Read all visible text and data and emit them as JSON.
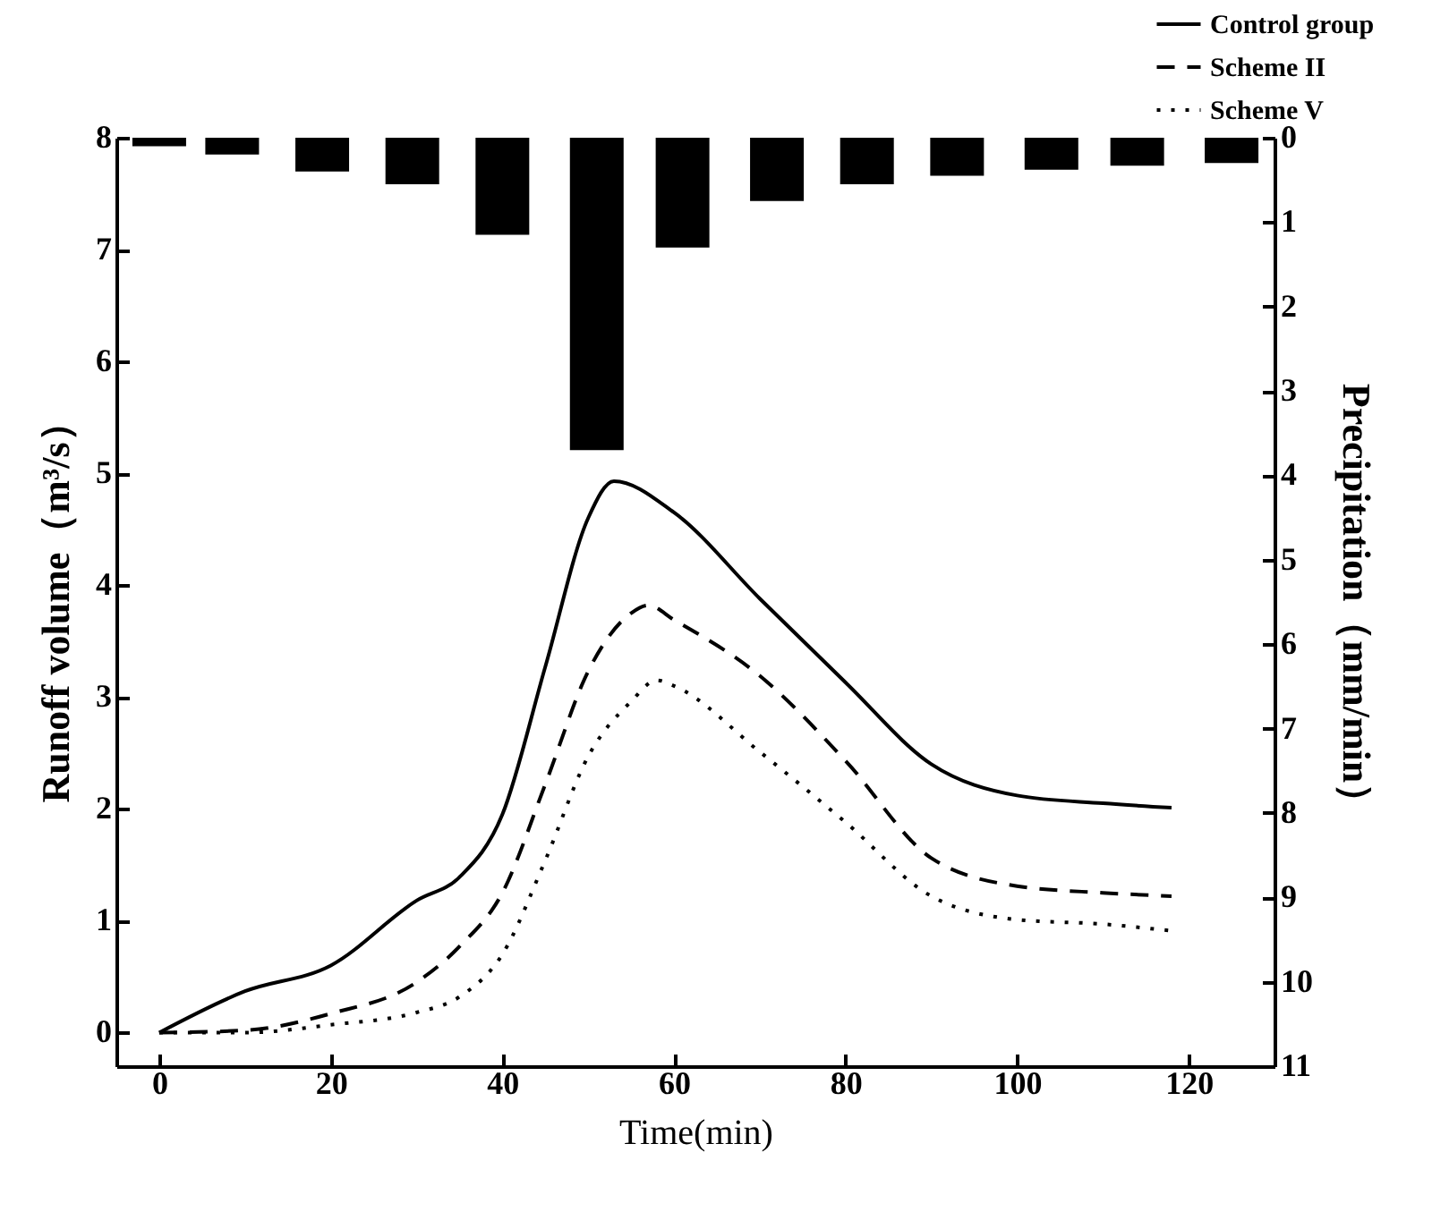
{
  "chart_data": {
    "type": "line",
    "xlabel": "Time(min)",
    "ylabel": "Runoff volume（m³/s）",
    "y2label": "Precipitation（mm/min）",
    "xlim": [
      -5,
      130
    ],
    "xticks": [
      0,
      20,
      40,
      60,
      80,
      100,
      120
    ],
    "ylim": [
      -0.3,
      8
    ],
    "yticks": [
      0,
      1,
      2,
      3,
      4,
      5,
      6,
      7,
      8
    ],
    "y2lim": [
      11,
      0
    ],
    "y2ticks": [
      0,
      1,
      2,
      3,
      4,
      5,
      6,
      7,
      8,
      9,
      10,
      11
    ],
    "legend": "top right",
    "grid": false,
    "marker": "none",
    "series": [
      {
        "name": "Control group",
        "color": "#000000",
        "line_style": "solid",
        "x": [
          0,
          10,
          20,
          30,
          35,
          40,
          45,
          50,
          53,
          60,
          70,
          80,
          90,
          100,
          110,
          118
        ],
        "values": [
          0,
          0.37,
          0.6,
          1.18,
          1.39,
          1.95,
          3.27,
          4.6,
          4.93,
          4.65,
          3.88,
          3.13,
          2.4,
          2.12,
          2.05,
          2.01
        ]
      },
      {
        "name": "Scheme II",
        "color": "#000000",
        "line_style": "dashed",
        "x": [
          0,
          10,
          20,
          30,
          35,
          40,
          45,
          50,
          55,
          57,
          60,
          70,
          80,
          90,
          100,
          110,
          118
        ],
        "values": [
          0,
          0.02,
          0.17,
          0.45,
          0.77,
          1.25,
          2.22,
          3.23,
          3.75,
          3.82,
          3.69,
          3.19,
          2.43,
          1.56,
          1.31,
          1.25,
          1.22
        ]
      },
      {
        "name": "Scheme V",
        "color": "#000000",
        "line_style": "dotted",
        "x": [
          0,
          10,
          20,
          30,
          35,
          40,
          45,
          50,
          55,
          58,
          60,
          70,
          80,
          90,
          100,
          110,
          118
        ],
        "values": [
          0,
          0,
          0.07,
          0.18,
          0.32,
          0.7,
          1.54,
          2.47,
          2.96,
          3.15,
          3.1,
          2.51,
          1.88,
          1.22,
          1.01,
          0.97,
          0.91
        ]
      },
      {
        "type": "bar",
        "axis": "y2",
        "color": "#000000",
        "x": [
          0,
          8.5,
          19,
          29.5,
          40,
          51,
          61,
          72,
          82.5,
          93,
          104,
          114,
          125
        ],
        "values": [
          0.1,
          0.2,
          0.4,
          0.55,
          1.15,
          3.7,
          1.3,
          0.75,
          0.55,
          0.45,
          0.38,
          0.33,
          0.3
        ]
      }
    ]
  }
}
